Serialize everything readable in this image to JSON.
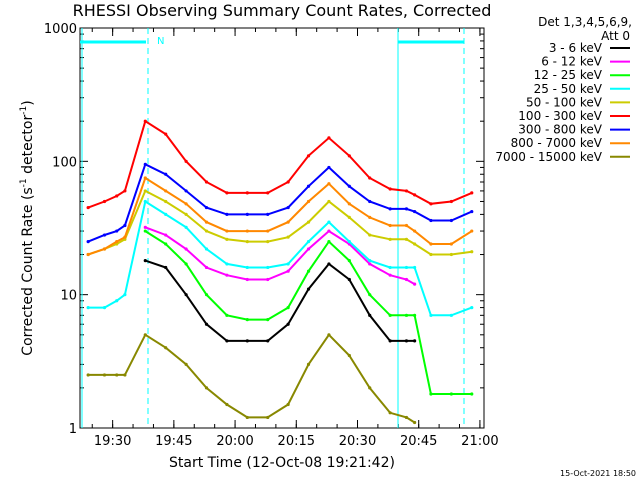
{
  "chart_data": {
    "type": "line",
    "title": "RHESSI Observing Summary Count Rates, Corrected",
    "xlabel": "Start Time (12-Oct-08 19:21:42)",
    "ylabel_main": "Corrected Count Rate (s",
    "ylabel_sup1": "-1",
    "ylabel_mid": " detector",
    "ylabel_sup2": "-1",
    "ylabel_end": ")",
    "yscale": "log",
    "ylim": [
      1,
      1000
    ],
    "xlim_minutes": [
      19.367,
      21.017
    ],
    "xticks": [
      {
        "label": "19:30",
        "t": "19:30"
      },
      {
        "label": "19:45",
        "t": "19:45"
      },
      {
        "label": "20:00",
        "t": "20:00"
      },
      {
        "label": "20:15",
        "t": "20:15"
      },
      {
        "label": "20:30",
        "t": "20:30"
      },
      {
        "label": "20:45",
        "t": "20:45"
      },
      {
        "label": "21:00",
        "t": "21:00"
      }
    ],
    "yticks": [
      {
        "label": "1",
        "v": 1
      },
      {
        "label": "10",
        "v": 10
      },
      {
        "label": "100",
        "v": 100
      },
      {
        "label": "1000",
        "v": 1000
      }
    ],
    "legend_header": "Det 1,3,4,5,6,9,",
    "legend_att": "Att 0",
    "legend_placement": "right",
    "night_marker": "N",
    "timestamp": "15-Oct-2021 18:50",
    "x_times": [
      "19:24",
      "19:28",
      "19:31",
      "19:33",
      "19:38",
      "19:43",
      "19:48",
      "19:53",
      "19:58",
      "20:03",
      "20:08",
      "20:13",
      "20:18",
      "20:23",
      "20:28",
      "20:33",
      "20:38",
      "20:42",
      "20:44",
      "20:48",
      "20:53",
      "20:58"
    ],
    "series": [
      {
        "name": "3 - 6 keV",
        "color": "#000000",
        "values": [
          null,
          null,
          null,
          null,
          18,
          16,
          10,
          6,
          4.5,
          4.5,
          4.5,
          6,
          11,
          17,
          13,
          7,
          4.5,
          4.5,
          4.5,
          null,
          null,
          null
        ]
      },
      {
        "name": "6 - 12 keV",
        "color": "#ff00ff",
        "values": [
          null,
          null,
          null,
          null,
          32,
          28,
          22,
          16,
          14,
          13,
          13,
          15,
          22,
          30,
          24,
          17,
          14,
          13,
          12,
          null,
          null,
          null
        ]
      },
      {
        "name": "12 - 25 keV",
        "color": "#00ff00",
        "values": [
          null,
          null,
          null,
          null,
          30,
          24,
          17,
          10,
          7,
          6.5,
          6.5,
          8,
          15,
          25,
          18,
          10,
          7,
          7,
          7,
          1.8,
          1.8,
          1.8
        ]
      },
      {
        "name": "25 - 50 keV",
        "color": "#00ffff",
        "values": [
          8,
          8,
          9,
          10,
          50,
          40,
          32,
          22,
          17,
          16,
          16,
          17,
          25,
          35,
          25,
          18,
          16,
          16,
          16,
          7,
          7,
          8
        ]
      },
      {
        "name": "50 - 100 keV",
        "color": "#cccc00",
        "values": [
          20,
          22,
          24,
          26,
          60,
          50,
          40,
          30,
          26,
          25,
          25,
          27,
          35,
          50,
          38,
          28,
          26,
          26,
          24,
          20,
          20,
          21
        ]
      },
      {
        "name": "100 - 300 keV",
        "color": "#ff0000",
        "values": [
          45,
          50,
          55,
          60,
          200,
          160,
          100,
          70,
          58,
          58,
          58,
          70,
          110,
          150,
          110,
          75,
          62,
          60,
          56,
          48,
          50,
          58
        ]
      },
      {
        "name": "300 - 800 keV",
        "color": "#0000ff",
        "values": [
          25,
          28,
          30,
          33,
          95,
          80,
          60,
          45,
          40,
          40,
          40,
          45,
          65,
          90,
          65,
          50,
          44,
          44,
          42,
          36,
          36,
          42
        ]
      },
      {
        "name": "800 - 7000 keV",
        "color": "#ff8800",
        "values": [
          20,
          22,
          25,
          27,
          75,
          60,
          48,
          35,
          30,
          30,
          30,
          35,
          50,
          68,
          48,
          38,
          33,
          33,
          30,
          24,
          24,
          30
        ]
      },
      {
        "name": "7000 - 15000 keV",
        "color": "#888800",
        "values": [
          2.5,
          2.5,
          2.5,
          2.5,
          5,
          4,
          3,
          2,
          1.5,
          1.2,
          1.2,
          1.5,
          3,
          5,
          3.5,
          2,
          1.3,
          1.2,
          1.1,
          null,
          null,
          null
        ]
      }
    ]
  }
}
